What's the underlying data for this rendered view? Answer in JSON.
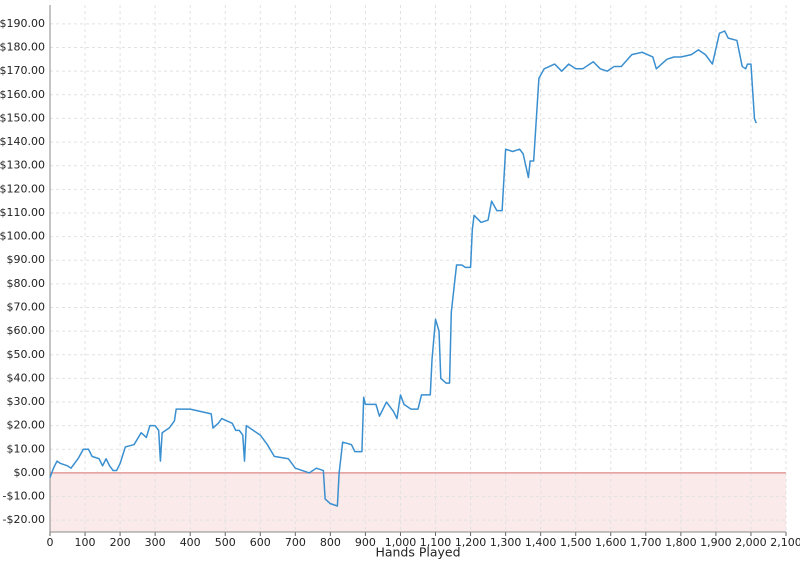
{
  "chart_data": {
    "type": "line",
    "x_label": "Hands Played",
    "xlim": [
      0,
      2100
    ],
    "ylim": [
      -25,
      198
    ],
    "xticks": [
      0,
      100,
      200,
      300,
      400,
      500,
      600,
      700,
      800,
      900,
      {
        "value": 1000,
        "label": "1,000"
      },
      {
        "value": 1100,
        "label": "1,100"
      },
      {
        "value": 1200,
        "label": "1,200"
      },
      {
        "value": 1300,
        "label": "1,300"
      },
      {
        "value": 1400,
        "label": "1,400"
      },
      {
        "value": 1500,
        "label": "1,500"
      },
      {
        "value": 1600,
        "label": "1,600"
      },
      {
        "value": 1700,
        "label": "1,700"
      },
      {
        "value": 1800,
        "label": "1,800"
      },
      {
        "value": 1900,
        "label": "1,900"
      },
      {
        "value": 2000,
        "label": "2,000"
      },
      {
        "value": 2100,
        "label": "2,100"
      }
    ],
    "yticks": [
      {
        "value": -20,
        "label": "-$20.00"
      },
      {
        "value": -10,
        "label": "-$10.00"
      },
      {
        "value": 0,
        "label": "$0.00"
      },
      {
        "value": 10,
        "label": "$10.00"
      },
      {
        "value": 20,
        "label": "$20.00"
      },
      {
        "value": 30,
        "label": "$30.00"
      },
      {
        "value": 40,
        "label": "$40.00"
      },
      {
        "value": 50,
        "label": "$50.00"
      },
      {
        "value": 60,
        "label": "$60.00"
      },
      {
        "value": 70,
        "label": "$70.00"
      },
      {
        "value": 80,
        "label": "$80.00"
      },
      {
        "value": 90,
        "label": "$90.00"
      },
      {
        "value": 100,
        "label": "$100.00"
      },
      {
        "value": 110,
        "label": "$110.00"
      },
      {
        "value": 120,
        "label": "$120.00"
      },
      {
        "value": 130,
        "label": "$130.00"
      },
      {
        "value": 140,
        "label": "$140.00"
      },
      {
        "value": 150,
        "label": "$150.00"
      },
      {
        "value": 160,
        "label": "$160.00"
      },
      {
        "value": 170,
        "label": "$170.00"
      },
      {
        "value": 180,
        "label": "$180.00"
      },
      {
        "value": 190,
        "label": "$190.00"
      }
    ],
    "grid": true,
    "negative_fill": "#fbeaea",
    "zero_line_color": "#e39a9a",
    "x": [
      0,
      5,
      10,
      20,
      30,
      50,
      60,
      80,
      95,
      110,
      120,
      140,
      150,
      160,
      170,
      180,
      190,
      200,
      215,
      240,
      260,
      275,
      285,
      300,
      310,
      315,
      320,
      340,
      355,
      360,
      400,
      430,
      460,
      465,
      480,
      490,
      520,
      530,
      540,
      550,
      555,
      560,
      580,
      600,
      620,
      640,
      680,
      700,
      720,
      740,
      760,
      780,
      785,
      800,
      820,
      825,
      835,
      860,
      870,
      890,
      895,
      900,
      930,
      940,
      960,
      980,
      990,
      1000,
      1010,
      1030,
      1050,
      1060,
      1085,
      1090,
      1100,
      1110,
      1115,
      1130,
      1140,
      1145,
      1160,
      1175,
      1185,
      1200,
      1205,
      1210,
      1230,
      1250,
      1260,
      1275,
      1290,
      1300,
      1320,
      1340,
      1350,
      1365,
      1370,
      1380,
      1395,
      1410,
      1440,
      1460,
      1480,
      1500,
      1520,
      1550,
      1570,
      1590,
      1610,
      1630,
      1660,
      1690,
      1720,
      1730,
      1760,
      1780,
      1800,
      1830,
      1850,
      1870,
      1890,
      1910,
      1925,
      1935,
      1960,
      1975,
      1985,
      1990,
      2000,
      2010,
      2015
    ],
    "series": [
      {
        "color": "#3a8fd0",
        "values": [
          -2,
          0,
          2,
          5,
          4,
          3,
          2,
          6,
          10,
          10,
          7,
          6,
          3,
          6,
          3,
          1,
          1,
          4,
          11,
          12,
          17,
          15,
          20,
          20,
          18,
          5,
          17,
          19,
          22,
          27,
          27,
          26,
          25,
          19,
          21,
          23,
          21,
          18,
          18,
          16,
          5,
          20,
          18,
          16,
          12,
          7,
          6,
          2,
          1,
          0,
          2,
          1,
          -11,
          -13,
          -14,
          0,
          13,
          12,
          9,
          9,
          32,
          29,
          29,
          24,
          30,
          26,
          23,
          33,
          29,
          27,
          27,
          33,
          33,
          48,
          65,
          60,
          40,
          38,
          38,
          68,
          88,
          88,
          87,
          87,
          103,
          109,
          106,
          107,
          115,
          111,
          111,
          137,
          136,
          137,
          135,
          125,
          132,
          132,
          167,
          171,
          173,
          170,
          173,
          171,
          171,
          174,
          171,
          170,
          172,
          172,
          177,
          178,
          176,
          171,
          175,
          176,
          176,
          177,
          179,
          177,
          173,
          186,
          187,
          184,
          183,
          172,
          171,
          173,
          173,
          150,
          148
        ]
      }
    ]
  }
}
